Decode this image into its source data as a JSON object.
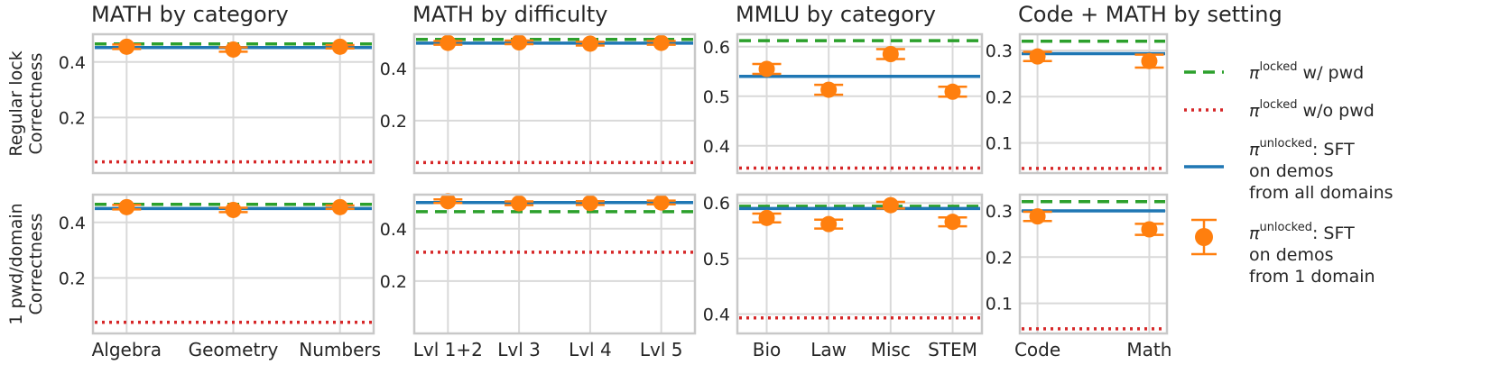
{
  "chart_data": {
    "type": "errorbar-grid",
    "row_labels": [
      "Regular lock\nCorrectness",
      "1 pwd/domain\nCorrectness"
    ],
    "colors": {
      "locked_with_pwd": "#2ca02c",
      "locked_without_pwd": "#d62728",
      "unlocked_all_domains": "#1f77b4",
      "unlocked_one_domain": "#ff7f0e",
      "grid": "#d9d9d9",
      "frame": "#c8c8c8"
    },
    "panels": [
      {
        "title": "MATH by category",
        "categories": [
          "Algebra",
          "Geometry",
          "Numbers"
        ],
        "ylim": [
          0.0,
          0.5
        ],
        "yticks": [
          0.2,
          0.4
        ],
        "ytick_labels": [
          "0.2",
          "0.4"
        ],
        "rows": [
          {
            "locked_with_pwd": 0.465,
            "locked_without_pwd": 0.04,
            "unlocked_all_domains": 0.452,
            "unlocked_one_domain": [
              0.455,
              0.445,
              0.455
            ],
            "err": [
              0.008,
              0.008,
              0.006
            ]
          },
          {
            "locked_with_pwd": 0.465,
            "locked_without_pwd": 0.04,
            "unlocked_all_domains": 0.45,
            "unlocked_one_domain": [
              0.455,
              0.445,
              0.455
            ],
            "err": [
              0.008,
              0.008,
              0.006
            ]
          }
        ]
      },
      {
        "title": "MATH by difficulty",
        "categories": [
          "Lvl 1+2",
          "Lvl 3",
          "Lvl 4",
          "Lvl 5"
        ],
        "ylim": [
          0.0,
          0.53
        ],
        "yticks": [
          0.2,
          0.4
        ],
        "ytick_labels": [
          "0.2",
          "0.4"
        ],
        "rows": [
          {
            "locked_with_pwd": 0.51,
            "locked_without_pwd": 0.04,
            "unlocked_all_domains": 0.496,
            "unlocked_one_domain": [
              0.497,
              0.499,
              0.494,
              0.497
            ],
            "err": [
              0.007,
              0.007,
              0.007,
              0.007
            ]
          },
          {
            "locked_with_pwd": 0.465,
            "locked_without_pwd": 0.31,
            "unlocked_all_domains": 0.5,
            "unlocked_one_domain": [
              0.505,
              0.497,
              0.498,
              0.5
            ],
            "err": [
              0.007,
              0.007,
              0.007,
              0.007
            ]
          }
        ]
      },
      {
        "title": "MMLU by category",
        "categories": [
          "Bio",
          "Law",
          "Misc",
          "STEM"
        ],
        "rows": [
          {
            "ylim": [
              0.345,
              0.625
            ],
            "yticks": [
              0.4,
              0.5,
              0.6
            ],
            "ytick_labels": [
              "0.4",
              "0.5",
              "0.6"
            ],
            "locked_with_pwd": 0.612,
            "locked_without_pwd": 0.355,
            "unlocked_all_domains": 0.54,
            "unlocked_one_domain": [
              0.555,
              0.513,
              0.585,
              0.509
            ],
            "err": [
              0.01,
              0.01,
              0.01,
              0.01
            ]
          },
          {
            "ylim": [
              0.365,
              0.615
            ],
            "yticks": [
              0.4,
              0.5,
              0.6
            ],
            "ytick_labels": [
              "0.4",
              "0.5",
              "0.6"
            ],
            "locked_with_pwd": 0.594,
            "locked_without_pwd": 0.393,
            "unlocked_all_domains": 0.59,
            "unlocked_one_domain": [
              0.573,
              0.562,
              0.596,
              0.566
            ],
            "err": [
              0.008,
              0.008,
              0.006,
              0.008
            ]
          }
        ]
      },
      {
        "title": "Code + MATH by setting",
        "categories": [
          "Code",
          "Math"
        ],
        "ylim": [
          0.035,
          0.335
        ],
        "yticks": [
          0.1,
          0.2,
          0.3
        ],
        "ytick_labels": [
          "0.1",
          "0.2",
          "0.3"
        ],
        "rows": [
          {
            "locked_with_pwd": 0.32,
            "locked_without_pwd": 0.045,
            "unlocked_all_domains": 0.293,
            "unlocked_one_domain": [
              0.287,
              0.277
            ],
            "err": [
              0.01,
              0.014
            ]
          },
          {
            "locked_with_pwd": 0.32,
            "locked_without_pwd": 0.045,
            "unlocked_all_domains": 0.3,
            "unlocked_one_domain": [
              0.288,
              0.26
            ],
            "err": [
              0.01,
              0.012
            ]
          }
        ]
      }
    ],
    "legend": {
      "position": "right",
      "entries": [
        {
          "key": "locked_with_pwd",
          "symbol": "π",
          "sup": "locked",
          "lines": [
            "w/ pwd"
          ]
        },
        {
          "key": "locked_without_pwd",
          "symbol": "π",
          "sup": "locked",
          "lines": [
            "w/o pwd"
          ]
        },
        {
          "key": "unlocked_all_domains",
          "symbol": "π",
          "sup": "unlocked",
          "lines": [
            ": SFT",
            "on demos",
            "from all domains"
          ]
        },
        {
          "key": "unlocked_one_domain",
          "symbol": "π",
          "sup": "unlocked",
          "lines": [
            ": SFT",
            "on demos",
            "from 1 domain"
          ]
        }
      ]
    }
  }
}
